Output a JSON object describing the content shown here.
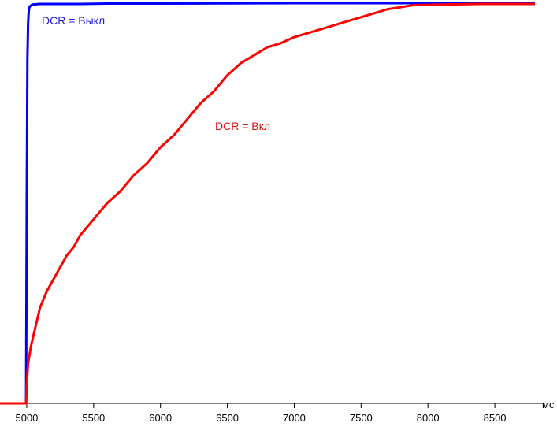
{
  "chart_data": {
    "type": "line",
    "title": "",
    "xlabel": "мс",
    "ylabel": "",
    "xlim": [
      4800,
      8800
    ],
    "ylim": [
      0,
      1
    ],
    "x_ticks": [
      5000,
      5500,
      6000,
      6500,
      7000,
      7500,
      8000,
      8500
    ],
    "x_tick_labels": [
      "5000",
      "5500",
      "6000",
      "6500",
      "7000",
      "7500",
      "8000",
      "8500"
    ],
    "grid": false,
    "legend": "none",
    "series": [
      {
        "name": "DCR = Выкл",
        "color": "#0000ff",
        "x": [
          4800,
          4995,
          5000,
          5005,
          5010,
          5015,
          5020,
          5030,
          5040,
          5060,
          5100,
          5200,
          5400,
          5600,
          6000,
          7000,
          8000,
          8800
        ],
        "y": [
          0,
          0,
          0.5,
          0.86,
          0.95,
          0.98,
          0.99,
          0.994,
          0.996,
          0.997,
          0.998,
          0.998,
          0.998,
          0.999,
          0.999,
          1.0,
          1.0,
          1.0
        ]
      },
      {
        "name": "DCR = Вкл",
        "color": "#ff0000",
        "x": [
          4800,
          4995,
          5000,
          5010,
          5030,
          5050,
          5100,
          5150,
          5200,
          5250,
          5300,
          5350,
          5400,
          5500,
          5600,
          5700,
          5800,
          5900,
          6000,
          6100,
          6200,
          6300,
          6400,
          6500,
          6600,
          6700,
          6800,
          6900,
          7000,
          7100,
          7200,
          7300,
          7400,
          7500,
          7600,
          7700,
          7800,
          7850,
          7900,
          8000,
          8200,
          8400,
          8600,
          8800
        ],
        "y": [
          0,
          0,
          0.05,
          0.1,
          0.14,
          0.17,
          0.24,
          0.28,
          0.31,
          0.34,
          0.37,
          0.39,
          0.42,
          0.46,
          0.5,
          0.53,
          0.57,
          0.6,
          0.64,
          0.67,
          0.71,
          0.75,
          0.78,
          0.82,
          0.85,
          0.87,
          0.89,
          0.9,
          0.915,
          0.925,
          0.935,
          0.945,
          0.955,
          0.965,
          0.975,
          0.985,
          0.99,
          0.993,
          0.995,
          0.996,
          0.997,
          0.998,
          0.998,
          0.998
        ]
      }
    ],
    "annotations": [
      {
        "text": "DCR = Выкл",
        "series": 0
      },
      {
        "text": "DCR = Вкл",
        "series": 1
      }
    ]
  }
}
